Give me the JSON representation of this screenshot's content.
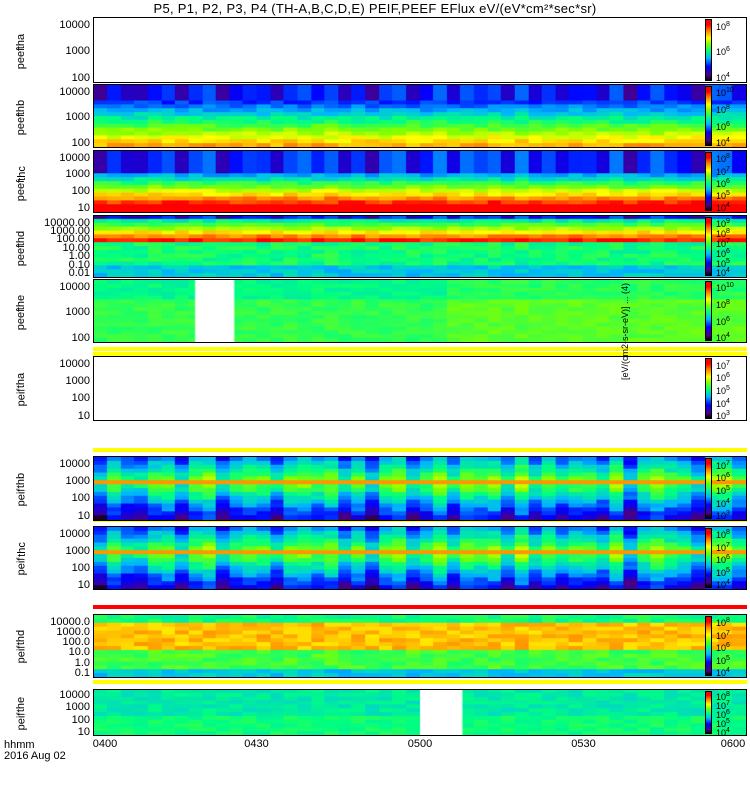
{
  "chart_data": {
    "type": "heatmap",
    "title": "P5, P1, P2, P3, P4 (TH-A,B,C,D,E) PEIF,PEEF EFlux eV/(eV*cm²*sec*sr)",
    "x_axis_label_line1": "hhmm",
    "x_axis_label_line2": "2016 Aug 02",
    "x_ticks": [
      "0400",
      "0430",
      "0500",
      "0530",
      "0600"
    ],
    "colorbar_title": "[eV/(cm2-s-sr-eV)] ... (4)",
    "panels": [
      {
        "label1": "tha",
        "label2": "peef",
        "yticks": [
          "10000",
          "1000",
          "100"
        ],
        "cbticks": [
          "10",
          "10",
          "10"
        ],
        "cbexp": [
          "8",
          "6",
          "4"
        ],
        "fill": "empty"
      },
      {
        "label1": "thb",
        "label2": "peef",
        "yticks": [
          "10000",
          "1000",
          "100"
        ],
        "cbticks": [
          "10",
          "10",
          "10",
          "10"
        ],
        "cbexp": [
          "10",
          "8",
          "6",
          "4"
        ],
        "fill": "electron-warm"
      },
      {
        "label1": "thc",
        "label2": "peef",
        "yticks": [
          "10000",
          "1000",
          "100",
          "10"
        ],
        "cbticks": [
          "10",
          "10",
          "10",
          "10",
          "10"
        ],
        "cbexp": [
          "8",
          "7",
          "6",
          "5",
          "4"
        ],
        "fill": "electron-hot"
      },
      {
        "label1": "thd",
        "label2": "peef",
        "yticks": [
          "10000.00",
          "1000.00",
          "100.00",
          "10.00",
          "1.00",
          "0.10",
          "0.01"
        ],
        "cbticks": [
          "10",
          "10",
          "10",
          "10",
          "10",
          "10"
        ],
        "cbexp": [
          "9",
          "8",
          "7",
          "6",
          "5",
          "4"
        ],
        "fill": "electron-wide"
      },
      {
        "label1": "the",
        "label2": "peef",
        "yticks": [
          "10000",
          "1000",
          "100"
        ],
        "cbticks": [
          "10",
          "10",
          "10",
          "10"
        ],
        "cbexp": [
          "10",
          "8",
          "6",
          "4"
        ],
        "fill": "electron-green",
        "gap": [
          0.155,
          0.215
        ]
      },
      {
        "label1": "tha",
        "label2": "peif",
        "yticks": [
          "10000",
          "1000",
          "100",
          "10"
        ],
        "cbticks": [
          "10",
          "10",
          "10",
          "10",
          "10"
        ],
        "cbexp": [
          "7",
          "6",
          "5",
          "4",
          "3"
        ],
        "fill": "empty"
      },
      {
        "label1": "thb",
        "label2": "peif",
        "yticks": [
          "10000",
          "1000",
          "100",
          "10"
        ],
        "cbticks": [
          "10",
          "10",
          "10",
          "10",
          "10"
        ],
        "cbexp": [
          "7",
          "6",
          "5",
          "4",
          "3"
        ],
        "fill": "ion-band"
      },
      {
        "label1": "thc",
        "label2": "peif",
        "yticks": [
          "10000",
          "1000",
          "100",
          "10"
        ],
        "cbticks": [
          "10",
          "10",
          "10",
          "10",
          "10"
        ],
        "cbexp": [
          "8",
          "7",
          "6",
          "5",
          "4"
        ],
        "fill": "ion-band"
      },
      {
        "label1": "thd",
        "label2": "peif",
        "yticks": [
          "10000.0",
          "1000.0",
          "100.0",
          "10.0",
          "1.0",
          "0.1"
        ],
        "cbticks": [
          "10",
          "10",
          "10",
          "10",
          "10"
        ],
        "cbexp": [
          "8",
          "7",
          "6",
          "5",
          "4"
        ],
        "fill": "ion-wide"
      },
      {
        "label1": "the",
        "label2": "peif",
        "yticks": [
          "10000",
          "1000",
          "100",
          "10"
        ],
        "cbticks": [
          "10",
          "10",
          "10",
          "10",
          "10"
        ],
        "cbexp": [
          "8",
          "7",
          "6",
          "5",
          "4"
        ],
        "fill": "ion-green",
        "gap": [
          0.5,
          0.565
        ]
      }
    ]
  }
}
